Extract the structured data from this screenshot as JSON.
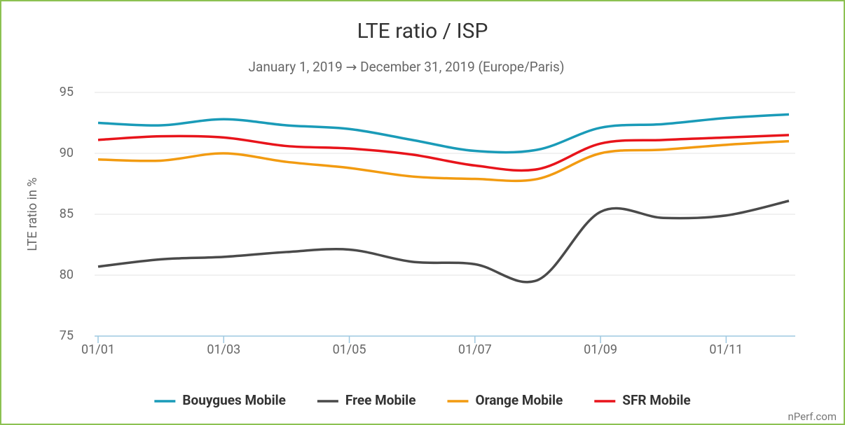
{
  "chart_data": {
    "type": "line",
    "title": "LTE ratio / ISP",
    "subtitle": "January 1, 2019 → December 31, 2019 (Europe/Paris)",
    "y_label": "LTE ratio in %",
    "credit": "nPerf.com",
    "categories": [
      "01/01",
      null,
      "01/03",
      null,
      "01/05",
      null,
      "01/07",
      null,
      "01/09",
      null,
      "01/11",
      null
    ],
    "series": [
      {
        "name": "Bouygues Mobile",
        "color": "#1a9bb8",
        "values": [
          92.5,
          92.3,
          92.8,
          92.3,
          92.0,
          91.1,
          90.2,
          90.3,
          92.1,
          92.4,
          92.9,
          93.2
        ]
      },
      {
        "name": "Free Mobile",
        "color": "#4a4a4a",
        "values": [
          80.7,
          81.3,
          81.5,
          81.9,
          82.1,
          81.1,
          80.9,
          79.6,
          85.2,
          84.7,
          84.9,
          86.1
        ]
      },
      {
        "name": "Orange Mobile",
        "color": "#f29b11",
        "values": [
          89.5,
          89.4,
          90.0,
          89.3,
          88.8,
          88.1,
          87.9,
          87.9,
          90.0,
          90.3,
          90.7,
          91.0
        ]
      },
      {
        "name": "SFR Mobile",
        "color": "#e8141b",
        "values": [
          91.1,
          91.4,
          91.3,
          90.6,
          90.4,
          89.9,
          89.0,
          88.7,
          90.8,
          91.1,
          91.3,
          91.5
        ]
      }
    ],
    "ylim": [
      75,
      95
    ],
    "yticks": [
      75,
      80,
      85,
      90,
      95
    ],
    "grid": true,
    "legend": "bottom"
  }
}
